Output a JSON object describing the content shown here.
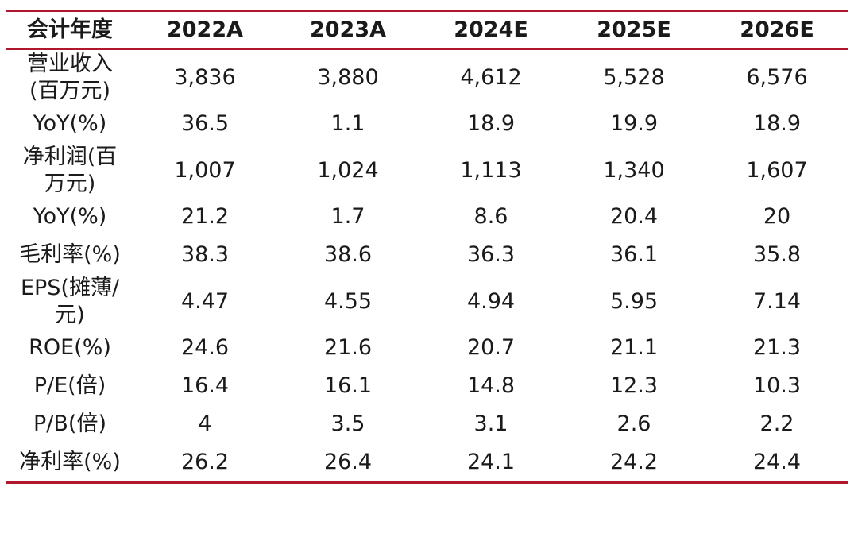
{
  "table": {
    "headers": [
      "会计年度",
      "2022A",
      "2023A",
      "2024E",
      "2025E",
      "2026E"
    ],
    "rows": [
      {
        "label_lines": [
          "营业收入",
          "(百万元)"
        ],
        "values": [
          "3,836",
          "3,880",
          "4,612",
          "5,528",
          "6,576"
        ]
      },
      {
        "label_lines": [
          "YoY(%)"
        ],
        "values": [
          "36.5",
          "1.1",
          "18.9",
          "19.9",
          "18.9"
        ]
      },
      {
        "label_lines": [
          "净利润(百",
          "万元)"
        ],
        "values": [
          "1,007",
          "1,024",
          "1,113",
          "1,340",
          "1,607"
        ]
      },
      {
        "label_lines": [
          "YoY(%)"
        ],
        "values": [
          "21.2",
          "1.7",
          "8.6",
          "20.4",
          "20"
        ]
      },
      {
        "label_lines": [
          "毛利率(%)"
        ],
        "values": [
          "38.3",
          "38.6",
          "36.3",
          "36.1",
          "35.8"
        ]
      },
      {
        "label_lines": [
          "EPS(摊薄/",
          "元)"
        ],
        "values": [
          "4.47",
          "4.55",
          "4.94",
          "5.95",
          "7.14"
        ]
      },
      {
        "label_lines": [
          "ROE(%)"
        ],
        "values": [
          "24.6",
          "21.6",
          "20.7",
          "21.1",
          "21.3"
        ]
      },
      {
        "label_lines": [
          "P/E(倍)"
        ],
        "values": [
          "16.4",
          "16.1",
          "14.8",
          "12.3",
          "10.3"
        ]
      },
      {
        "label_lines": [
          "P/B(倍)"
        ],
        "values": [
          "4",
          "3.5",
          "3.1",
          "2.6",
          "2.2"
        ]
      },
      {
        "label_lines": [
          "净利率(%)"
        ],
        "values": [
          "26.2",
          "26.4",
          "24.1",
          "24.2",
          "24.4"
        ]
      }
    ]
  },
  "colors": {
    "rule": "#b0172c",
    "text": "#1a1a1a"
  }
}
